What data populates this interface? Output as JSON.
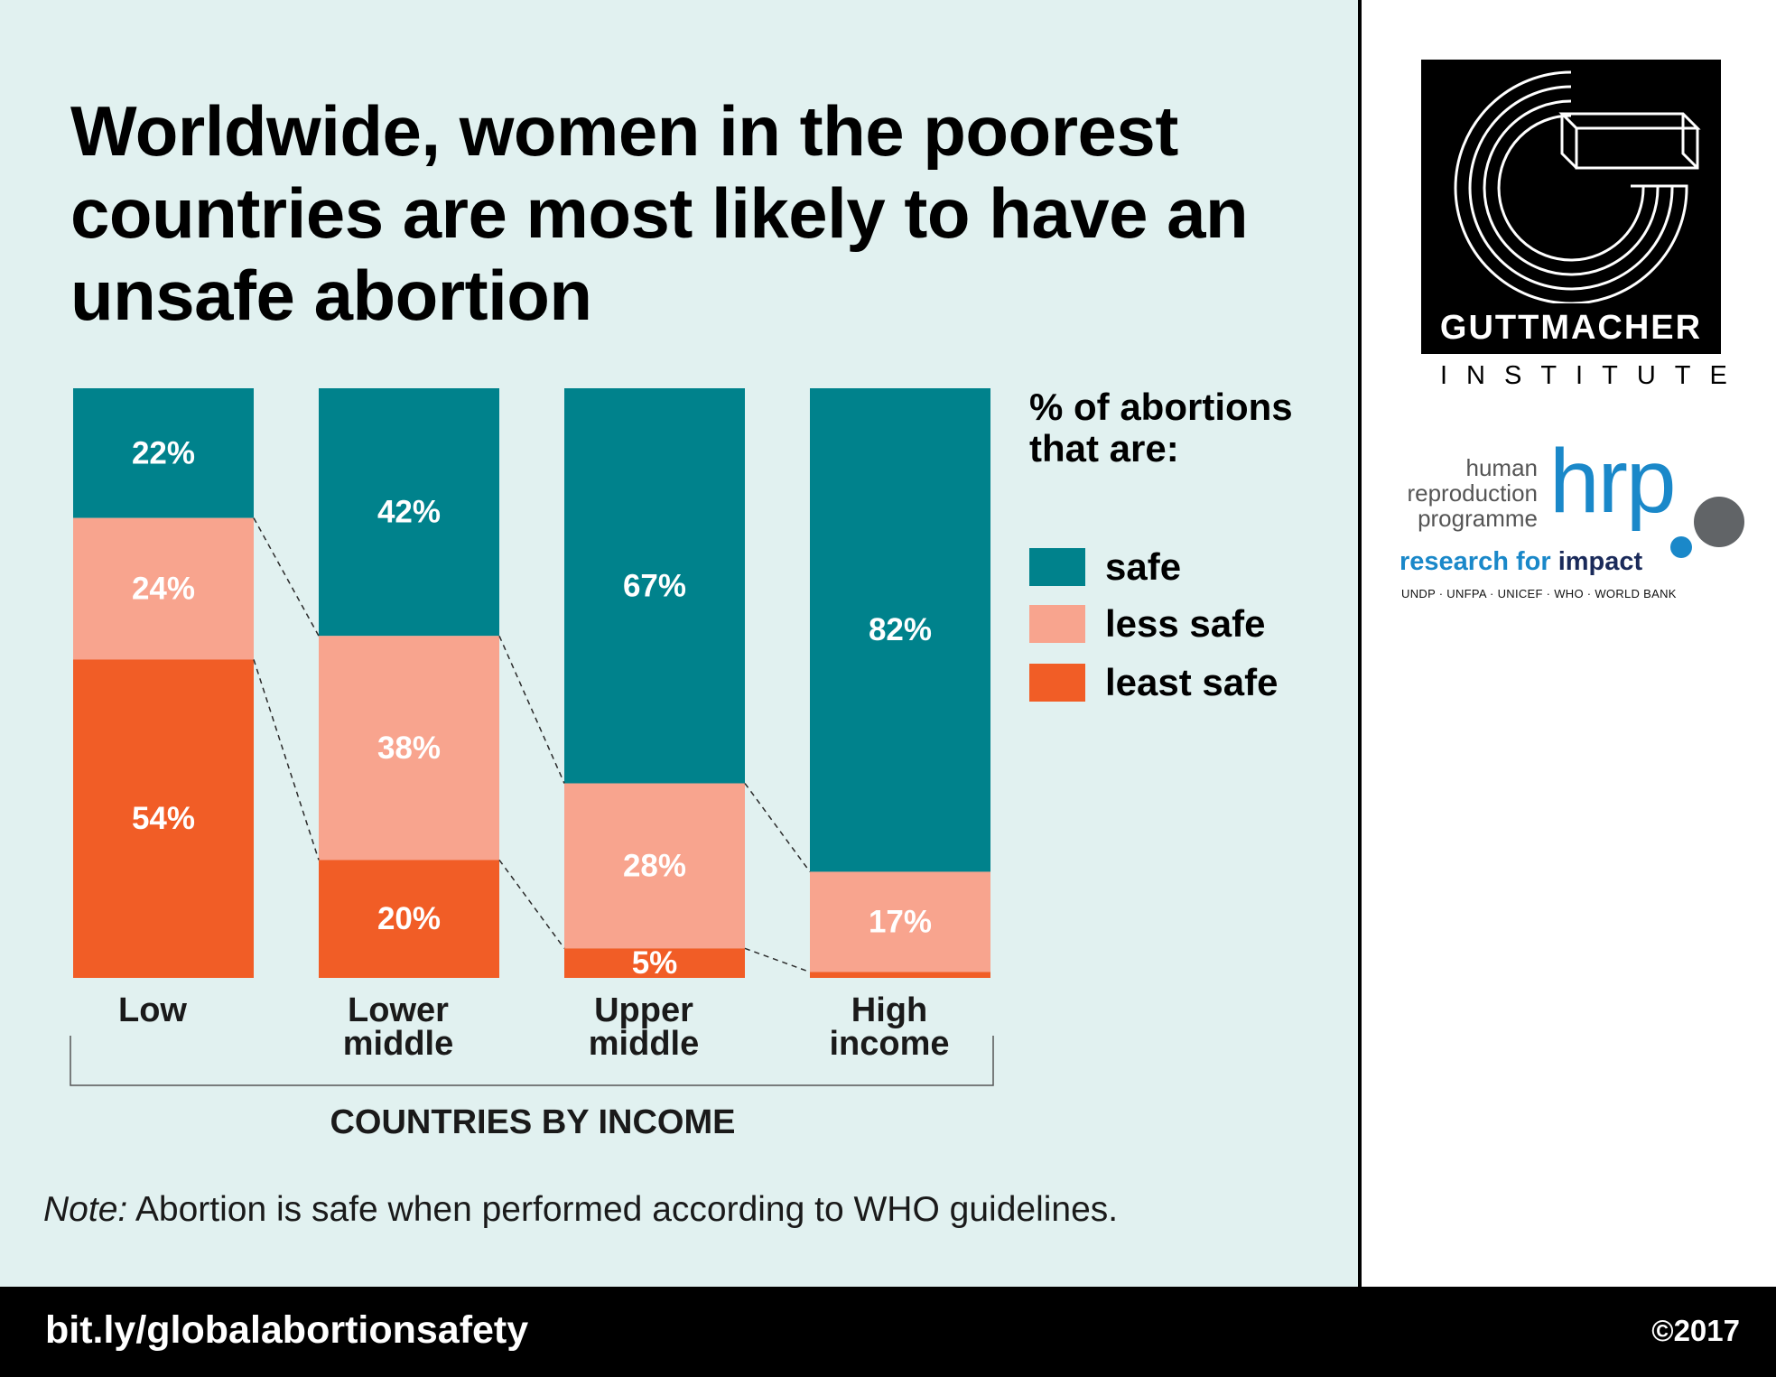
{
  "title": "Worldwide, women in the poorest countries are most likely to have an unsafe abortion",
  "legend": {
    "title": "% of abortions that are:",
    "items": [
      {
        "label": "safe",
        "color": "#00828c"
      },
      {
        "label": "less safe",
        "color": "#f8a48e"
      },
      {
        "label": "least safe",
        "color": "#f15d26"
      }
    ]
  },
  "axis_title": "COUNTRIES BY INCOME",
  "note": {
    "prefix": "Note:",
    "text": " Abortion is safe when performed according to WHO guidelines."
  },
  "footer": {
    "url": "bit.ly/globalabortionsafety",
    "copyright": "©2017"
  },
  "logos": {
    "guttmacher": {
      "name": "GUTTMACHER",
      "sub": "INSTITUTE"
    },
    "hrp": {
      "words": [
        "human",
        "reproduction",
        "programme"
      ],
      "acronym": "hrp",
      "tagline_a": "research for",
      "tagline_b": " impact",
      "partners": "UNDP · UNFPA · UNICEF · WHO · WORLD BANK"
    }
  },
  "chart_data": {
    "type": "bar",
    "stacked": true,
    "categories": [
      [
        "Low"
      ],
      [
        "Lower",
        "middle"
      ],
      [
        "Upper",
        "middle"
      ],
      [
        "High",
        "income"
      ]
    ],
    "series": [
      {
        "name": "safe",
        "color": "#00828c",
        "values": [
          22,
          42,
          67,
          82
        ],
        "labels": [
          "22%",
          "42%",
          "67%",
          "82%"
        ]
      },
      {
        "name": "less safe",
        "color": "#f8a48e",
        "values": [
          24,
          38,
          28,
          17
        ],
        "labels": [
          "24%",
          "38%",
          "28%",
          "17%"
        ]
      },
      {
        "name": "least safe",
        "color": "#f15d26",
        "values": [
          54,
          20,
          5,
          1
        ],
        "labels": [
          "54%",
          "20%",
          "5%",
          ""
        ]
      }
    ],
    "xlabel": "COUNTRIES BY INCOME",
    "ylim": [
      0,
      100
    ],
    "grid": false,
    "legend_position": "right"
  }
}
